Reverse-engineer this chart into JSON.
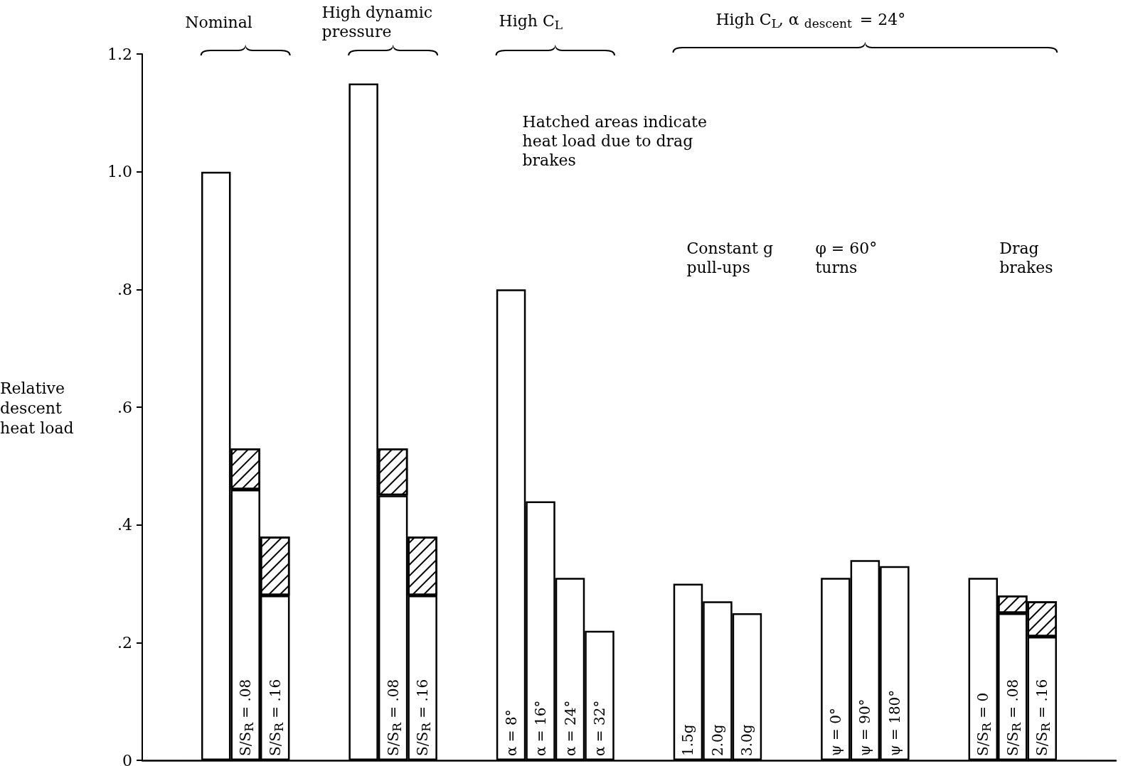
{
  "chart_data": {
    "type": "bar",
    "stacked": true,
    "ylabel": "Relative descent heat load",
    "annotations": [
      "Nominal",
      "High dynamic pressure",
      "High C$_{L}$",
      "High C$_{L}$, α$_{descent}$ = 24°",
      "Constant g pull-ups",
      "φ = 60° turns",
      "Drag brakes",
      "Hatched areas indicate heat load due to drag brakes"
    ],
    "categories": [
      null,
      null,
      null,
      "S/S$_{R}$ = .08",
      "S/S$_{R}$ = .16",
      null,
      null,
      null,
      "S/S$_{R}$ = .08",
      "S/S$_{R}$ = .16",
      null,
      null,
      "α = 8°",
      "α = 16°",
      "α = 24°",
      "α = 32°",
      null,
      null,
      "1.5g",
      "2.0g",
      "3.0g",
      null,
      null,
      "ψ = 0°",
      "ψ = 90°",
      "ψ = 180°",
      null,
      null,
      "S/S$_{R}$ = 0",
      "S/S$_{R}$ = .08",
      "S/S$_{R}$ = .16",
      null,
      null
    ],
    "series": [
      {
        "color": "#ffffff",
        "values": [
          null,
          null,
          1.0,
          0.46,
          0.28,
          null,
          null,
          1.15,
          0.45,
          0.28,
          null,
          null,
          0.8,
          0.44,
          0.31,
          0.22,
          null,
          null,
          0.3,
          0.27,
          0.25,
          null,
          null,
          0.31,
          0.34,
          0.33,
          null,
          null,
          0.31,
          0.25,
          0.21,
          null,
          null
        ]
      },
      {
        "color": "#000000",
        "values": [
          null,
          null,
          null,
          0.07,
          0.1,
          null,
          null,
          null,
          0.08,
          0.1,
          null,
          null,
          null,
          null,
          null,
          null,
          null,
          null,
          null,
          null,
          null,
          null,
          null,
          null,
          null,
          null,
          null,
          null,
          null,
          0.03,
          0.06,
          null,
          null
        ]
      }
    ],
    "ylim": [
      0,
      1.2
    ],
    "yticks": [
      0,
      {
        "value": 0.2,
        "label": ".2"
      },
      {
        "value": 0.4,
        "label": ".4"
      },
      {
        "value": 0.6,
        "label": ".6"
      },
      {
        "value": 0.8,
        "label": ".8"
      },
      {
        "value": 1.0,
        "label": "1.0"
      },
      1.2
    ],
    "grid": false
  }
}
